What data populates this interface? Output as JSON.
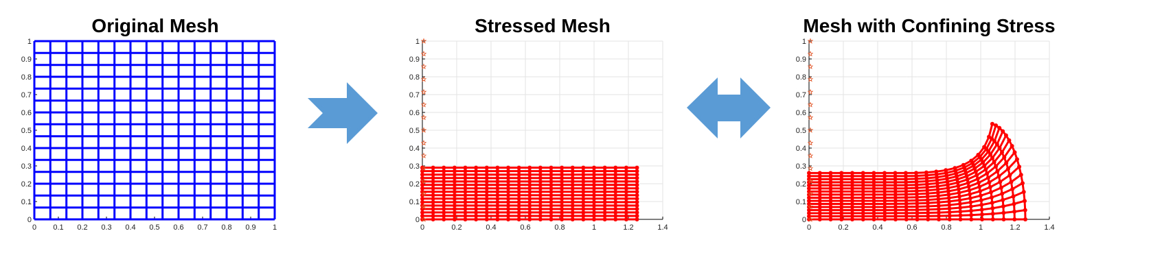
{
  "colors": {
    "original_mesh": "#0000ff",
    "stressed_mesh": "#ff0000",
    "boundary_marker": "#e05020",
    "arrow": "#5b9bd5",
    "grid": "#e3e3e3"
  },
  "arrows": [
    {
      "name": "right-arrow",
      "direction": "right"
    },
    {
      "name": "double-arrow",
      "direction": "both"
    }
  ],
  "chart_data": [
    {
      "type": "line",
      "title": "Original Mesh",
      "xlim": [
        0,
        1
      ],
      "ylim": [
        0,
        1
      ],
      "xticks": [
        "0",
        "0.1",
        "0.2",
        "0.3",
        "0.4",
        "0.5",
        "0.6",
        "0.7",
        "0.8",
        "0.9",
        "1"
      ],
      "yticks": [
        "0",
        "0.1",
        "0.2",
        "0.3",
        "0.4",
        "0.5",
        "0.6",
        "0.7",
        "0.8",
        "0.9",
        "1"
      ],
      "grid": false,
      "mesh": {
        "kind": "rect",
        "x_range": [
          0,
          1
        ],
        "y_range": [
          0,
          1
        ],
        "columns": 15,
        "rows": 15,
        "line_color": "#0000ff",
        "nodes_shown": false
      }
    },
    {
      "type": "line",
      "title": "Stressed Mesh",
      "xlim": [
        0,
        1.4
      ],
      "ylim": [
        0,
        1
      ],
      "xticks": [
        "0",
        "0.2",
        "0.4",
        "0.6",
        "0.8",
        "1",
        "1.2",
        "1.4"
      ],
      "yticks": [
        "0",
        "0.1",
        "0.2",
        "0.3",
        "0.4",
        "0.5",
        "0.6",
        "0.7",
        "0.8",
        "0.9",
        "1"
      ],
      "grid": true,
      "mesh": {
        "kind": "rect",
        "x_range": [
          0,
          1.25
        ],
        "y_range": [
          0,
          0.29
        ],
        "columns": 20,
        "rows": 15,
        "line_color": "#ff0000",
        "nodes_shown": true
      },
      "boundary_markers": {
        "x": 0,
        "y_from": 0,
        "y_to": 1,
        "count": 15,
        "marker": "star"
      }
    },
    {
      "type": "line",
      "title": "Mesh with Confining Stress",
      "xlim": [
        0,
        1.4
      ],
      "ylim": [
        0,
        1
      ],
      "xticks": [
        "0",
        "0.2",
        "0.4",
        "0.6",
        "0.8",
        "1",
        "1.2",
        "1.4"
      ],
      "yticks": [
        "0",
        "0.1",
        "0.2",
        "0.3",
        "0.4",
        "0.5",
        "0.6",
        "0.7",
        "0.8",
        "0.9",
        "1"
      ],
      "grid": true,
      "mesh": {
        "kind": "deformed",
        "columns": 20,
        "rows": 15,
        "x_extent": 1.26,
        "top_left_y": 0.26,
        "bulge_center_x": 1.08,
        "bulge_peak_y": 0.54,
        "line_color": "#ff0000",
        "nodes_shown": true
      },
      "boundary_markers": {
        "x": 0,
        "y_from": 0,
        "y_to": 1,
        "count": 15,
        "marker": "star"
      }
    }
  ]
}
